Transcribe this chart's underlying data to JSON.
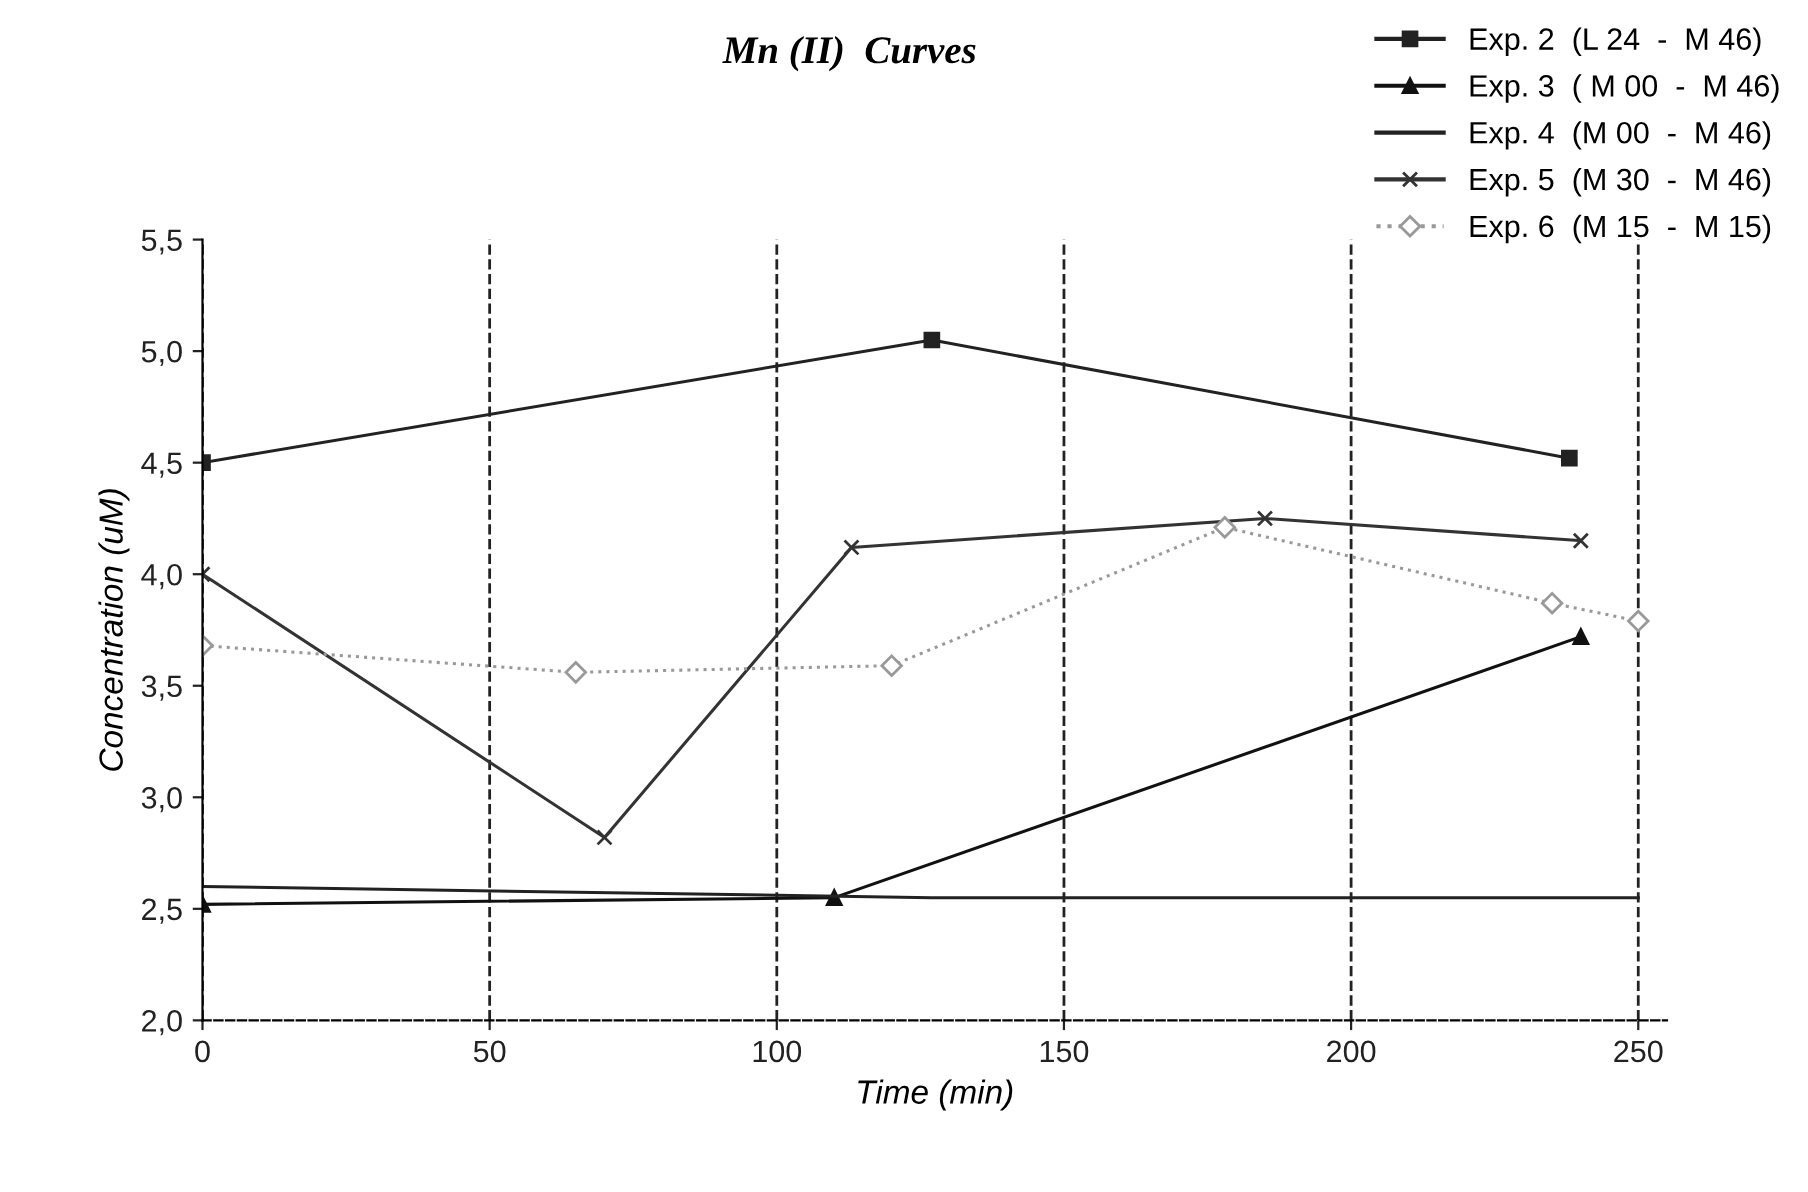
{
  "chart_data": {
    "type": "line",
    "title": "Mn (II)  Curves",
    "xlabel": "Time (min)",
    "ylabel": "Concentration (uM)",
    "xlim": [
      0,
      255
    ],
    "ylim": [
      2.0,
      5.5
    ],
    "xticks": [
      0,
      50,
      100,
      150,
      200,
      250
    ],
    "yticks": [
      {
        "value": 2.0,
        "label": "2,0"
      },
      {
        "value": 2.5,
        "label": "2,5"
      },
      {
        "value": 3.0,
        "label": "3,0"
      },
      {
        "value": 3.5,
        "label": "3,5"
      },
      {
        "value": 4.0,
        "label": "4,0"
      },
      {
        "value": 4.5,
        "label": "4,5"
      },
      {
        "value": 5.0,
        "label": "5,0"
      },
      {
        "value": 5.5,
        "label": "5,5"
      }
    ],
    "grid": "x",
    "legend": "top right",
    "line_style": "solid",
    "series": [
      {
        "name": "Exp. 2  (L 24  -  M 46)",
        "color": "#222222",
        "marker": "square",
        "x": [
          0,
          127,
          238
        ],
        "values": [
          4.5,
          5.05,
          4.52
        ]
      },
      {
        "name": "Exp. 3  ( M 00  -  M 46)",
        "color": "#111111",
        "marker": "triangle",
        "x": [
          0,
          110,
          240
        ],
        "values": [
          2.52,
          2.55,
          3.72
        ]
      },
      {
        "name": "Exp. 4  (M 00  -  M 46)",
        "color": "#222222",
        "marker": "none",
        "x": [
          0,
          127,
          236,
          250
        ],
        "values": [
          2.6,
          2.55,
          2.55,
          2.55
        ]
      },
      {
        "name": "Exp. 5  (M 30  -  M 46)",
        "color": "#333333",
        "marker": "cross",
        "x": [
          0,
          70,
          113,
          185,
          240
        ],
        "values": [
          4.0,
          2.82,
          4.12,
          4.25,
          4.15
        ]
      },
      {
        "name": "Exp. 6  (M 15  -  M 15)",
        "color": "#999999",
        "marker": "diamond",
        "line_style": "dotted",
        "x": [
          0,
          65,
          120,
          178,
          235,
          250
        ],
        "values": [
          3.68,
          3.56,
          3.59,
          4.21,
          3.87,
          3.79
        ]
      }
    ]
  }
}
